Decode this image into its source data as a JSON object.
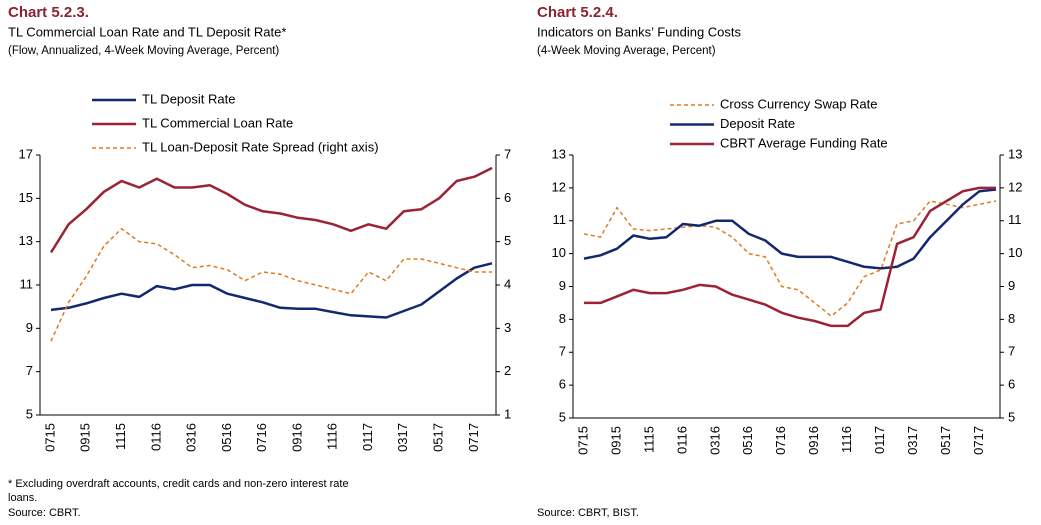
{
  "chart_data": [
    {
      "type": "line",
      "title": "Chart 5.2.3.",
      "subtitle": "TL Commercial Loan Rate and TL Deposit Rate*",
      "note": "(Flow, Annualized, 4-Week Moving Average, Percent)",
      "footnote": "* Excluding overdraft accounts, credit cards and non-zero interest rate loans.",
      "source": "Source: CBRT.",
      "categories": [
        "0715",
        null,
        "0915",
        null,
        "1115",
        null,
        "0116",
        null,
        "0316",
        null,
        "0516",
        null,
        "0716",
        null,
        "0916",
        null,
        "1116",
        null,
        "0117",
        null,
        "0317",
        null,
        "0517",
        null,
        "0717",
        null
      ],
      "ylim": [
        5,
        17
      ],
      "yticks": [
        5,
        7,
        9,
        11,
        13,
        15,
        17
      ],
      "y2lim": [
        1,
        7
      ],
      "y2ticks": [
        1,
        2,
        3,
        4,
        5,
        6,
        7
      ],
      "series": [
        {
          "name": "TL Deposit Rate",
          "color": "#14286e",
          "style": "solid",
          "values": [
            9.85,
            9.95,
            10.15,
            10.4,
            10.6,
            10.45,
            10.95,
            10.8,
            11.0,
            11.0,
            10.6,
            10.4,
            10.2,
            9.95,
            9.9,
            9.9,
            9.75,
            9.6,
            9.55,
            9.5,
            9.8,
            10.1,
            10.7,
            11.3,
            11.8,
            12.0
          ]
        },
        {
          "name": "TL Commercial Loan Rate",
          "color": "#9b2335",
          "style": "solid",
          "values": [
            12.5,
            13.8,
            14.5,
            15.3,
            15.8,
            15.5,
            15.9,
            15.5,
            15.5,
            15.6,
            15.2,
            14.7,
            14.4,
            14.3,
            14.1,
            14.0,
            13.8,
            13.5,
            13.8,
            13.6,
            14.4,
            14.5,
            15.0,
            15.8,
            16.0,
            16.4
          ]
        },
        {
          "name": "TL Loan-Deposit Rate Spread (right axis)",
          "color": "#e07b1c",
          "style": "dashed",
          "axis": "y2",
          "values": [
            2.7,
            3.6,
            4.2,
            4.9,
            5.3,
            5.0,
            4.95,
            4.7,
            4.4,
            4.45,
            4.35,
            4.1,
            4.3,
            4.25,
            4.1,
            4.0,
            3.9,
            3.8,
            4.3,
            4.1,
            4.6,
            4.6,
            4.5,
            4.4,
            4.3,
            4.3
          ]
        }
      ]
    },
    {
      "type": "line",
      "title": "Chart 5.2.4.",
      "subtitle": "Indicators on Banks’ Funding Costs",
      "note": "(4-Week Moving Average, Percent)",
      "source": "Source: CBRT, BIST.",
      "categories": [
        "0715",
        null,
        "0915",
        null,
        "1115",
        null,
        "0116",
        null,
        "0316",
        null,
        "0516",
        null,
        "0716",
        null,
        "0916",
        null,
        "1116",
        null,
        "0117",
        null,
        "0317",
        null,
        "0517",
        null,
        "0717",
        null
      ],
      "ylim": [
        5,
        13
      ],
      "yticks": [
        5,
        6,
        7,
        8,
        9,
        10,
        11,
        12,
        13
      ],
      "y2lim": [
        5,
        13
      ],
      "y2ticks": [
        5,
        6,
        7,
        8,
        9,
        10,
        11,
        12,
        13
      ],
      "series": [
        {
          "name": "Cross Currency Swap Rate",
          "color": "#e07b1c",
          "style": "dashed",
          "values": [
            10.6,
            10.5,
            11.4,
            10.75,
            10.7,
            10.75,
            10.8,
            10.85,
            10.8,
            10.5,
            10.0,
            9.9,
            9.0,
            8.9,
            8.5,
            8.1,
            8.5,
            9.3,
            9.5,
            10.9,
            11.0,
            11.6,
            11.5,
            11.4,
            11.5,
            11.6
          ]
        },
        {
          "name": "Deposit Rate",
          "color": "#14286e",
          "style": "solid",
          "values": [
            9.85,
            9.95,
            10.15,
            10.55,
            10.45,
            10.5,
            10.9,
            10.85,
            11.0,
            11.0,
            10.6,
            10.4,
            10.0,
            9.9,
            9.9,
            9.9,
            9.75,
            9.6,
            9.55,
            9.6,
            9.85,
            10.5,
            11.0,
            11.5,
            11.9,
            11.95
          ]
        },
        {
          "name": "CBRT Average Funding Rate",
          "color": "#9b2335",
          "style": "solid",
          "values": [
            8.5,
            8.5,
            8.7,
            8.9,
            8.8,
            8.8,
            8.9,
            9.05,
            9.0,
            8.75,
            8.6,
            8.45,
            8.2,
            8.05,
            7.95,
            7.8,
            7.8,
            8.2,
            8.3,
            10.3,
            10.5,
            11.3,
            11.6,
            11.9,
            12.0,
            12.0
          ]
        }
      ]
    }
  ]
}
